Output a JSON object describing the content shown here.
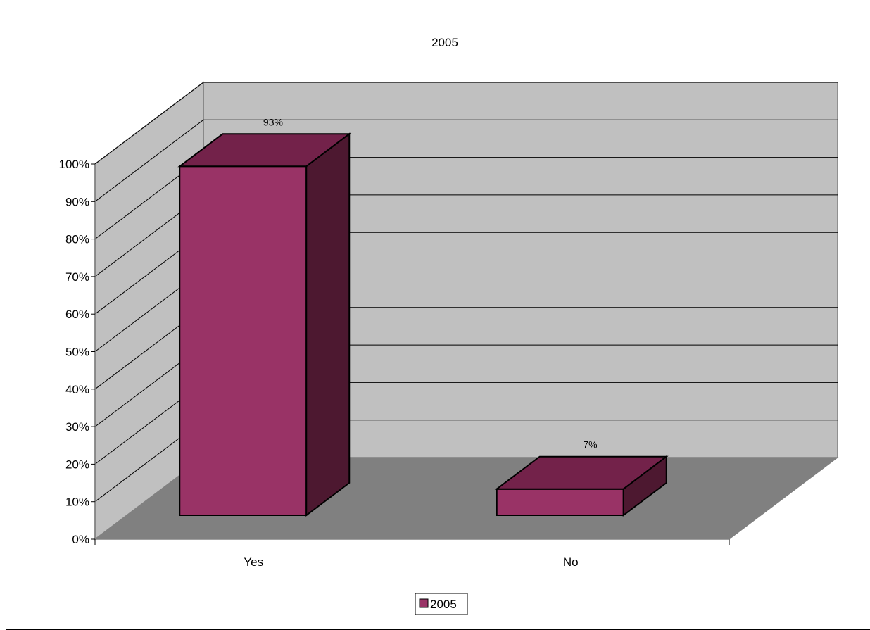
{
  "chart_data": {
    "type": "bar",
    "title": "2005",
    "categories": [
      "Yes",
      "No"
    ],
    "series": [
      {
        "name": "2005",
        "values": [
          93,
          7
        ],
        "color": "#993366"
      }
    ],
    "data_labels": [
      "93%",
      "7%"
    ],
    "ylim": [
      0,
      100
    ],
    "y_ticks": [
      0,
      10,
      20,
      30,
      40,
      50,
      60,
      70,
      80,
      90,
      100
    ],
    "y_tick_format": "percent",
    "xlabel": "",
    "ylabel": "",
    "grid": true,
    "three_d": true,
    "legend_position": "bottom",
    "colors": {
      "wall": "#c0c0c0",
      "floor": "#808080",
      "bar_front": "#993366",
      "bar_top": "#73224a",
      "bar_side": "#4d1830"
    }
  }
}
